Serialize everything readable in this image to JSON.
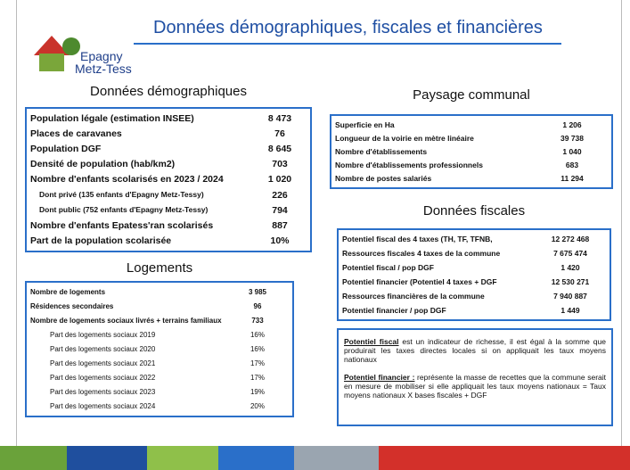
{
  "header": {
    "title": "Données démographiques, fiscales et financières",
    "logo": [
      "Epagny",
      "Metz-Tessy"
    ]
  },
  "demographie": {
    "title": "Données démographiques",
    "rows": [
      [
        "Population légale (estimation INSEE)",
        "8 473"
      ],
      [
        "Places de caravanes",
        "76"
      ],
      [
        "Population DGF",
        "8 645"
      ],
      [
        "Densité de population (hab/km2)",
        "703"
      ],
      [
        "Nombre d'enfants scolarisés en 2023 / 2024",
        "1 020"
      ],
      [
        "Dont privé (135 enfants d'Epagny Metz-Tessy)",
        "226"
      ],
      [
        "Dont public (752 enfants d'Epagny Metz-Tessy)",
        "794"
      ],
      [
        "Nombre d'enfants Epatess'ran scolarisés",
        "887"
      ],
      [
        "Part de la population scolarisée",
        "10%"
      ]
    ]
  },
  "logements": {
    "title": "Logements",
    "rows": [
      [
        "Nombre de logements",
        "3 985"
      ],
      [
        "Résidences secondaires",
        "96"
      ],
      [
        "Nombre de logements sociaux livrés + terrains familiaux",
        "733"
      ],
      [
        "Part des logements sociaux 2019",
        "16%"
      ],
      [
        "Part des logements sociaux 2020",
        "16%"
      ],
      [
        "Part des logements sociaux 2021",
        "17%"
      ],
      [
        "Part des logements sociaux 2022",
        "17%"
      ],
      [
        "Part des logements sociaux 2023",
        "19%"
      ],
      [
        "Part des logements sociaux 2024",
        "20%"
      ]
    ]
  },
  "paysage": {
    "title": "Paysage communal",
    "rows": [
      [
        "Superficie en Ha",
        "1 206"
      ],
      [
        "Longueur de la voirie en mètre linéaire",
        "39 738"
      ],
      [
        "Nombre d'établissements",
        "1 040"
      ],
      [
        "Nombre d'établissements professionnels",
        "683"
      ],
      [
        "Nombre de postes salariés",
        "11 294"
      ]
    ]
  },
  "fiscales": {
    "title": "Données fiscales",
    "rows": [
      [
        "Potentiel fiscal des 4 taxes (TH, TF, TFNB,",
        "12 272 468"
      ],
      [
        "Ressources fiscales 4 taxes de la commune",
        "7 675 474"
      ],
      [
        "Potentiel fiscal / pop DGF",
        "1 420"
      ],
      [
        "Potentiel financier (Potentiel 4 taxes + DGF",
        "12 530 271"
      ],
      [
        "Ressources financières de la commune",
        "7 940 887"
      ],
      [
        "Potentiel financier / pop DGF",
        "1 449"
      ]
    ]
  },
  "notes": [
    {
      "term": "Potentiel fiscal",
      "text": " est un indicateur de richesse, il est égal à la somme que produirait les taxes directes locales si on appliquait les taux moyens nationaux"
    },
    {
      "term": "Potentiel financier :",
      "text": " représente la masse de recettes que la commune serait en mesure de mobiliser si elle appliquait les taux moyens nationaux = Taux moyens nationaux X bases fiscales + DGF"
    }
  ]
}
